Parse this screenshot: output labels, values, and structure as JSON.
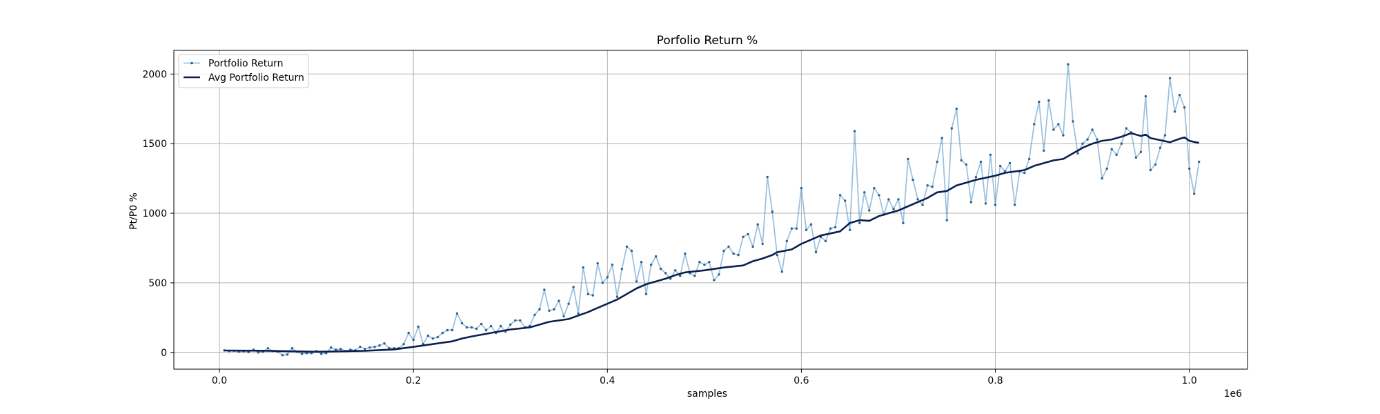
{
  "chart_data": {
    "type": "line",
    "title": "Porfolio Return %",
    "xlabel": "samples",
    "ylabel": "Pt/P0 %",
    "x_offset_label": "1e6",
    "xlim": [
      -0.047,
      1.06
    ],
    "ylim": [
      -120,
      2170
    ],
    "xticks": [
      0.0,
      0.2,
      0.4,
      0.6,
      0.8,
      1.0
    ],
    "xtick_labels": [
      "0.0",
      "0.2",
      "0.4",
      "0.6",
      "0.8",
      "1.0"
    ],
    "yticks": [
      0,
      500,
      1000,
      1500,
      2000
    ],
    "ytick_labels": [
      "0",
      "500",
      "1000",
      "1500",
      "2000"
    ],
    "grid": true,
    "legend_position": "top-left",
    "colors": {
      "portfolio": "#4a90c4",
      "avg": "#0a1f4e",
      "grid": "#b0b0b0"
    },
    "series": [
      {
        "name": "Portfolio Return",
        "style": "thin-line-with-markers",
        "points": [
          [
            0.005,
            15
          ],
          [
            0.01,
            10
          ],
          [
            0.015,
            12
          ],
          [
            0.02,
            5
          ],
          [
            0.025,
            8
          ],
          [
            0.03,
            3
          ],
          [
            0.035,
            20
          ],
          [
            0.04,
            0
          ],
          [
            0.045,
            5
          ],
          [
            0.05,
            30
          ],
          [
            0.055,
            10
          ],
          [
            0.06,
            5
          ],
          [
            0.065,
            -20
          ],
          [
            0.07,
            -15
          ],
          [
            0.075,
            30
          ],
          [
            0.08,
            5
          ],
          [
            0.085,
            -10
          ],
          [
            0.09,
            -5
          ],
          [
            0.095,
            -5
          ],
          [
            0.1,
            10
          ],
          [
            0.105,
            -10
          ],
          [
            0.11,
            -5
          ],
          [
            0.115,
            35
          ],
          [
            0.12,
            20
          ],
          [
            0.125,
            25
          ],
          [
            0.13,
            10
          ],
          [
            0.135,
            20
          ],
          [
            0.14,
            15
          ],
          [
            0.145,
            40
          ],
          [
            0.15,
            25
          ],
          [
            0.155,
            35
          ],
          [
            0.16,
            40
          ],
          [
            0.165,
            50
          ],
          [
            0.17,
            65
          ],
          [
            0.175,
            30
          ],
          [
            0.18,
            30
          ],
          [
            0.185,
            30
          ],
          [
            0.19,
            60
          ],
          [
            0.195,
            140
          ],
          [
            0.2,
            90
          ],
          [
            0.205,
            185
          ],
          [
            0.21,
            60
          ],
          [
            0.215,
            120
          ],
          [
            0.22,
            100
          ],
          [
            0.225,
            110
          ],
          [
            0.23,
            140
          ],
          [
            0.235,
            160
          ],
          [
            0.24,
            160
          ],
          [
            0.245,
            280
          ],
          [
            0.25,
            210
          ],
          [
            0.255,
            180
          ],
          [
            0.26,
            180
          ],
          [
            0.265,
            170
          ],
          [
            0.27,
            205
          ],
          [
            0.275,
            160
          ],
          [
            0.28,
            190
          ],
          [
            0.285,
            140
          ],
          [
            0.29,
            190
          ],
          [
            0.295,
            150
          ],
          [
            0.3,
            200
          ],
          [
            0.305,
            230
          ],
          [
            0.31,
            230
          ],
          [
            0.315,
            180
          ],
          [
            0.32,
            190
          ],
          [
            0.325,
            270
          ],
          [
            0.33,
            310
          ],
          [
            0.335,
            450
          ],
          [
            0.34,
            300
          ],
          [
            0.345,
            310
          ],
          [
            0.35,
            370
          ],
          [
            0.355,
            260
          ],
          [
            0.36,
            350
          ],
          [
            0.365,
            470
          ],
          [
            0.37,
            280
          ],
          [
            0.375,
            610
          ],
          [
            0.38,
            420
          ],
          [
            0.385,
            410
          ],
          [
            0.39,
            640
          ],
          [
            0.395,
            500
          ],
          [
            0.4,
            540
          ],
          [
            0.405,
            630
          ],
          [
            0.41,
            400
          ],
          [
            0.415,
            600
          ],
          [
            0.42,
            760
          ],
          [
            0.425,
            730
          ],
          [
            0.43,
            510
          ],
          [
            0.435,
            650
          ],
          [
            0.44,
            420
          ],
          [
            0.445,
            630
          ],
          [
            0.45,
            690
          ],
          [
            0.455,
            600
          ],
          [
            0.46,
            570
          ],
          [
            0.465,
            530
          ],
          [
            0.47,
            590
          ],
          [
            0.475,
            550
          ],
          [
            0.48,
            710
          ],
          [
            0.485,
            570
          ],
          [
            0.49,
            550
          ],
          [
            0.495,
            650
          ],
          [
            0.5,
            630
          ],
          [
            0.505,
            650
          ],
          [
            0.51,
            520
          ],
          [
            0.515,
            560
          ],
          [
            0.52,
            730
          ],
          [
            0.525,
            760
          ],
          [
            0.53,
            710
          ],
          [
            0.535,
            700
          ],
          [
            0.54,
            830
          ],
          [
            0.545,
            850
          ],
          [
            0.55,
            760
          ],
          [
            0.555,
            920
          ],
          [
            0.56,
            780
          ],
          [
            0.565,
            1260
          ],
          [
            0.57,
            1010
          ],
          [
            0.575,
            700
          ],
          [
            0.58,
            580
          ],
          [
            0.585,
            800
          ],
          [
            0.59,
            890
          ],
          [
            0.595,
            890
          ],
          [
            0.6,
            1180
          ],
          [
            0.605,
            880
          ],
          [
            0.61,
            920
          ],
          [
            0.615,
            720
          ],
          [
            0.62,
            830
          ],
          [
            0.625,
            800
          ],
          [
            0.63,
            890
          ],
          [
            0.635,
            900
          ],
          [
            0.64,
            1130
          ],
          [
            0.645,
            1090
          ],
          [
            0.65,
            880
          ],
          [
            0.655,
            1590
          ],
          [
            0.66,
            930
          ],
          [
            0.665,
            1150
          ],
          [
            0.67,
            1020
          ],
          [
            0.675,
            1180
          ],
          [
            0.68,
            1130
          ],
          [
            0.685,
            990
          ],
          [
            0.69,
            1100
          ],
          [
            0.695,
            1030
          ],
          [
            0.7,
            1100
          ],
          [
            0.705,
            930
          ],
          [
            0.71,
            1390
          ],
          [
            0.715,
            1240
          ],
          [
            0.72,
            1100
          ],
          [
            0.725,
            1060
          ],
          [
            0.73,
            1200
          ],
          [
            0.735,
            1190
          ],
          [
            0.74,
            1370
          ],
          [
            0.745,
            1540
          ],
          [
            0.75,
            950
          ],
          [
            0.755,
            1610
          ],
          [
            0.76,
            1750
          ],
          [
            0.765,
            1380
          ],
          [
            0.77,
            1350
          ],
          [
            0.775,
            1080
          ],
          [
            0.78,
            1260
          ],
          [
            0.785,
            1370
          ],
          [
            0.79,
            1070
          ],
          [
            0.795,
            1420
          ],
          [
            0.8,
            1060
          ],
          [
            0.805,
            1340
          ],
          [
            0.81,
            1300
          ],
          [
            0.815,
            1360
          ],
          [
            0.82,
            1060
          ],
          [
            0.825,
            1300
          ],
          [
            0.83,
            1290
          ],
          [
            0.835,
            1390
          ],
          [
            0.84,
            1640
          ],
          [
            0.845,
            1800
          ],
          [
            0.85,
            1450
          ],
          [
            0.855,
            1810
          ],
          [
            0.86,
            1600
          ],
          [
            0.865,
            1640
          ],
          [
            0.87,
            1560
          ],
          [
            0.875,
            2070
          ],
          [
            0.88,
            1660
          ],
          [
            0.885,
            1430
          ],
          [
            0.89,
            1500
          ],
          [
            0.895,
            1530
          ],
          [
            0.9,
            1600
          ],
          [
            0.905,
            1530
          ],
          [
            0.91,
            1250
          ],
          [
            0.915,
            1320
          ],
          [
            0.92,
            1460
          ],
          [
            0.925,
            1420
          ],
          [
            0.93,
            1500
          ],
          [
            0.935,
            1610
          ],
          [
            0.94,
            1580
          ],
          [
            0.945,
            1400
          ],
          [
            0.95,
            1440
          ],
          [
            0.955,
            1840
          ],
          [
            0.96,
            1310
          ],
          [
            0.965,
            1350
          ],
          [
            0.97,
            1470
          ],
          [
            0.975,
            1560
          ],
          [
            0.98,
            1970
          ],
          [
            0.985,
            1730
          ],
          [
            0.99,
            1850
          ],
          [
            0.995,
            1760
          ],
          [
            1.0,
            1320
          ],
          [
            1.005,
            1140
          ],
          [
            1.01,
            1370
          ]
        ]
      },
      {
        "name": "Avg Portfolio Return",
        "style": "thick-line",
        "points": [
          [
            0.005,
            14
          ],
          [
            0.05,
            12
          ],
          [
            0.1,
            5
          ],
          [
            0.15,
            12
          ],
          [
            0.18,
            22
          ],
          [
            0.2,
            40
          ],
          [
            0.22,
            60
          ],
          [
            0.24,
            80
          ],
          [
            0.25,
            100
          ],
          [
            0.26,
            115
          ],
          [
            0.28,
            140
          ],
          [
            0.3,
            165
          ],
          [
            0.32,
            180
          ],
          [
            0.34,
            220
          ],
          [
            0.36,
            240
          ],
          [
            0.37,
            265
          ],
          [
            0.38,
            290
          ],
          [
            0.39,
            320
          ],
          [
            0.4,
            350
          ],
          [
            0.41,
            380
          ],
          [
            0.42,
            420
          ],
          [
            0.43,
            460
          ],
          [
            0.44,
            490
          ],
          [
            0.45,
            510
          ],
          [
            0.46,
            530
          ],
          [
            0.47,
            555
          ],
          [
            0.48,
            575
          ],
          [
            0.5,
            590
          ],
          [
            0.52,
            610
          ],
          [
            0.54,
            625
          ],
          [
            0.55,
            655
          ],
          [
            0.56,
            675
          ],
          [
            0.57,
            700
          ],
          [
            0.575,
            720
          ],
          [
            0.59,
            740
          ],
          [
            0.6,
            780
          ],
          [
            0.62,
            840
          ],
          [
            0.64,
            870
          ],
          [
            0.65,
            930
          ],
          [
            0.66,
            950
          ],
          [
            0.67,
            945
          ],
          [
            0.68,
            980
          ],
          [
            0.69,
            1000
          ],
          [
            0.7,
            1020
          ],
          [
            0.71,
            1050
          ],
          [
            0.72,
            1080
          ],
          [
            0.73,
            1110
          ],
          [
            0.74,
            1150
          ],
          [
            0.75,
            1160
          ],
          [
            0.76,
            1200
          ],
          [
            0.77,
            1220
          ],
          [
            0.78,
            1240
          ],
          [
            0.79,
            1255
          ],
          [
            0.8,
            1270
          ],
          [
            0.81,
            1290
          ],
          [
            0.82,
            1300
          ],
          [
            0.83,
            1310
          ],
          [
            0.84,
            1340
          ],
          [
            0.85,
            1360
          ],
          [
            0.86,
            1380
          ],
          [
            0.87,
            1390
          ],
          [
            0.88,
            1430
          ],
          [
            0.89,
            1470
          ],
          [
            0.9,
            1500
          ],
          [
            0.91,
            1520
          ],
          [
            0.92,
            1530
          ],
          [
            0.93,
            1550
          ],
          [
            0.94,
            1575
          ],
          [
            0.95,
            1555
          ],
          [
            0.955,
            1565
          ],
          [
            0.96,
            1540
          ],
          [
            0.97,
            1525
          ],
          [
            0.98,
            1510
          ],
          [
            0.99,
            1535
          ],
          [
            0.995,
            1545
          ],
          [
            1.0,
            1520
          ],
          [
            1.01,
            1505
          ]
        ]
      }
    ]
  }
}
